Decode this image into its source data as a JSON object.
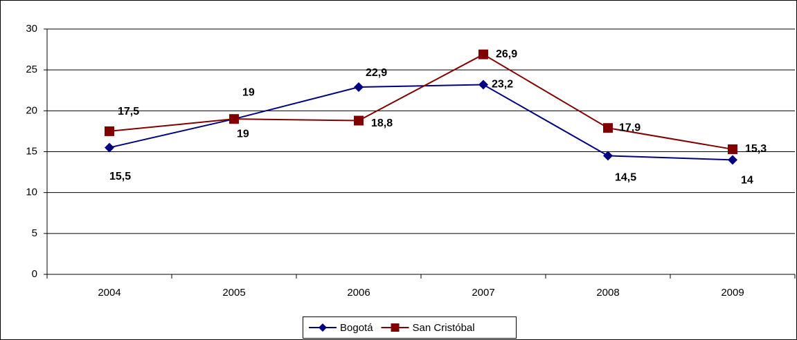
{
  "chart_data": {
    "type": "line",
    "categories": [
      "2004",
      "2005",
      "2006",
      "2007",
      "2008",
      "2009"
    ],
    "series": [
      {
        "name": "Bogotá",
        "color": "#000080",
        "marker": "diamond",
        "values": [
          15.5,
          19,
          22.9,
          23.2,
          14.5,
          14
        ],
        "value_labels": [
          "15,5",
          "19",
          "22,9",
          "23,2",
          "14,5",
          "14"
        ]
      },
      {
        "name": "San Cristóbal",
        "color": "#800000",
        "marker": "square",
        "values": [
          17.5,
          19,
          18.8,
          26.9,
          17.9,
          15.3
        ],
        "value_labels": [
          "17,5",
          "19",
          "18,8",
          "26,9",
          "17,9",
          "15,3"
        ]
      }
    ],
    "ylim": [
      0,
      30
    ],
    "yticks": [
      0,
      5,
      10,
      15,
      20,
      25,
      30
    ],
    "grid": true,
    "legend": "bottom"
  }
}
